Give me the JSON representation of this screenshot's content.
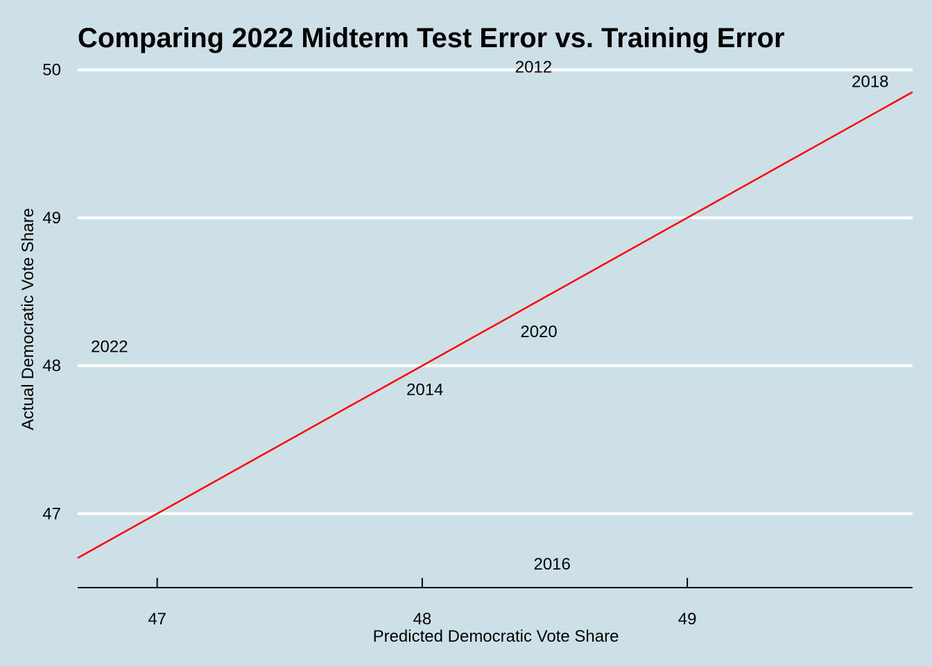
{
  "chart_data": {
    "type": "scatter",
    "title": "Comparing 2022 Midterm Test Error vs. Training Error",
    "xlabel": "Predicted Democratic Vote Share",
    "ylabel": "Actual Democratic Vote Share",
    "xlim": [
      46.7,
      49.85
    ],
    "ylim": [
      46.5,
      50.05
    ],
    "x_ticks": [
      47,
      48,
      49
    ],
    "y_ticks": [
      47,
      48,
      49,
      50
    ],
    "grid": "horizontal-major",
    "reference_line": {
      "intercept": 0,
      "slope": 1,
      "color": "#ff0000"
    },
    "points": [
      {
        "label": "2012",
        "x": 48.42,
        "y": 50.02,
        "color": "#000000"
      },
      {
        "label": "2014",
        "x": 48.01,
        "y": 47.84,
        "color": "#000000"
      },
      {
        "label": "2016",
        "x": 48.49,
        "y": 46.66,
        "color": "#000000"
      },
      {
        "label": "2018",
        "x": 49.69,
        "y": 49.92,
        "color": "#000000"
      },
      {
        "label": "2020",
        "x": 48.44,
        "y": 48.23,
        "color": "#000000"
      },
      {
        "label": "2022",
        "x": 46.82,
        "y": 48.13,
        "color": "#ff0000"
      }
    ]
  }
}
